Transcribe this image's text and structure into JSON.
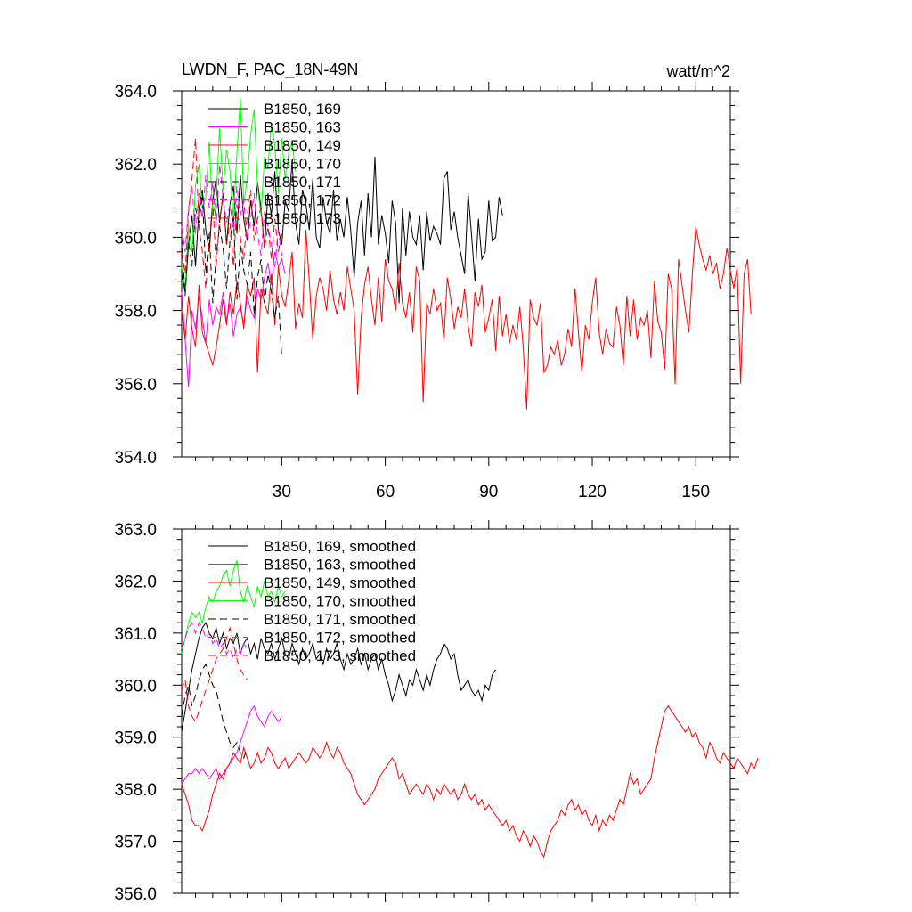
{
  "chart_data": [
    {
      "type": "line",
      "title_left": "LWDN_F, PAC_18N-49N",
      "title_right": "watt/m^2",
      "xlim": [
        1,
        160
      ],
      "ylim": [
        354,
        364
      ],
      "x_ticks": [
        30,
        60,
        90,
        120,
        150
      ],
      "x_tick_labels": [
        "30",
        "60",
        "90",
        "120",
        "150"
      ],
      "y_ticks": [
        354,
        356,
        358,
        360,
        362,
        364
      ],
      "y_tick_labels": [
        "354.0",
        "356.0",
        "358.0",
        "360.0",
        "362.0",
        "364.0"
      ],
      "legend_position": "top-left",
      "series": [
        {
          "name": "B1850, 169",
          "color": "#000000",
          "dash": "solid",
          "values": [
            359.0,
            358.5,
            359.8,
            360.6,
            359.2,
            360.8,
            361.3,
            360.2,
            359.6,
            361.0,
            361.6,
            360.4,
            361.2,
            359.8,
            360.9,
            361.4,
            360.1,
            361.7,
            360.5,
            359.9,
            361.0,
            360.3,
            361.5,
            360.8,
            359.7,
            361.2,
            360.6,
            361.8,
            360.2,
            359.8,
            361.0,
            360.7,
            362.1,
            360.4,
            359.8,
            361.3,
            360.9,
            360.2,
            361.6,
            360.0,
            359.7,
            361.1,
            360.4,
            360.1,
            361.3,
            359.9,
            360.5,
            360.0,
            361.1,
            360.2,
            358.9,
            360.4,
            361.0,
            359.5,
            361.2,
            360.0,
            362.2,
            359.8,
            360.6,
            360.1,
            359.3,
            361.0,
            360.4,
            358.2,
            360.8,
            359.5,
            360.7,
            360.0,
            359.8,
            360.6,
            359.1,
            360.7,
            359.9,
            360.3,
            360.1,
            359.8,
            361.6,
            361.8,
            360.2,
            360.7,
            360.0,
            359.5,
            359.0,
            361.2,
            360.1,
            358.8,
            360.5,
            359.4,
            359.6,
            361.0,
            359.9,
            360.0,
            361.1,
            360.6
          ]
        },
        {
          "name": "B1850, 163",
          "color": "#ff00ff",
          "dash": "solid",
          "values": [
            358.5,
            357.2,
            355.9,
            358.0,
            357.5,
            358.4,
            357.8,
            357.1,
            358.3,
            357.6,
            358.1,
            357.9,
            358.5,
            357.7,
            358.2,
            357.3,
            357.9,
            358.1,
            357.6,
            358.4,
            358.0,
            357.8,
            358.6,
            358.3,
            358.9,
            359.3,
            358.7,
            359.6,
            359.2,
            359.4,
            359.0
          ]
        },
        {
          "name": "B1850, 149",
          "color": "#ff0000",
          "dash": "solid",
          "values": [
            358.0,
            357.2,
            358.4,
            357.5,
            357.0,
            358.7,
            357.4,
            357.1,
            356.8,
            356.5,
            357.0,
            357.6,
            358.3,
            357.6,
            358.5,
            357.9,
            358.8,
            358.2,
            357.5,
            358.7,
            358.4,
            358.9,
            356.3,
            358.6,
            358.2,
            357.9,
            359.0,
            357.6,
            359.2,
            358.4,
            358.1,
            358.8,
            359.6,
            357.5,
            358.2,
            357.8,
            360.2,
            358.8,
            357.2,
            358.4,
            358.9,
            358.6,
            358.0,
            359.1,
            358.3,
            357.9,
            358.5,
            358.0,
            359.2,
            358.6,
            358.0,
            355.7,
            357.8,
            358.7,
            359.2,
            358.3,
            357.6,
            358.9,
            357.7,
            359.4,
            358.8,
            358.6,
            358.0,
            359.3,
            358.2,
            357.8,
            358.5,
            357.4,
            359.2,
            358.8,
            355.5,
            358.2,
            357.9,
            358.6,
            358.0,
            358.2,
            357.2,
            358.9,
            358.3,
            357.5,
            358.1,
            357.8,
            358.6,
            357.6,
            357.0,
            358.5,
            358.1,
            358.7,
            357.4,
            357.8,
            358.3,
            356.9,
            358.4,
            357.3,
            357.9,
            357.1,
            357.6,
            357.2,
            358.1,
            357.0,
            355.3,
            358.3,
            357.8,
            357.6,
            358.2,
            356.3,
            356.5,
            357.0,
            356.8,
            357.2,
            356.5,
            356.8,
            357.5,
            357.0,
            358.6,
            357.4,
            356.3,
            357.6,
            357.2,
            358.2,
            358.9,
            357.4,
            356.8,
            357.5,
            357.1,
            357.0,
            358.1,
            357.6,
            356.5,
            358.4,
            357.3,
            358.3,
            357.2,
            357.8,
            357.6,
            358.0,
            356.7,
            358.8,
            357.7,
            357.4,
            356.4,
            359.0,
            358.6,
            356.0,
            359.4,
            358.7,
            358.0,
            357.4,
            359.0,
            360.3,
            359.8,
            359.4,
            359.1,
            359.5,
            359.0,
            359.3,
            358.6,
            359.0,
            359.7,
            359.1,
            358.6,
            359.2,
            356.0,
            359.0,
            359.4,
            357.9
          ]
        },
        {
          "name": "B1850, 170",
          "color": "#00ff00",
          "dash": "solid",
          "values": [
            359.2,
            358.6,
            360.3,
            359.6,
            361.4,
            362.0,
            360.8,
            361.1,
            362.6,
            360.6,
            361.0,
            363.0,
            361.3,
            362.4,
            361.8,
            360.5,
            362.3,
            363.8,
            360.9,
            361.6,
            362.8,
            363.5,
            361.4,
            360.6,
            362.2,
            361.9,
            363.1,
            362.5,
            361.2,
            362.7,
            361.6,
            362.3,
            362.6,
            361.8
          ]
        },
        {
          "name": "B1850, 171",
          "color": "#000000",
          "dash": "dashed",
          "values": [
            360.0,
            358.4,
            359.9,
            359.2,
            360.8,
            360.4,
            361.2,
            359.0,
            360.1,
            358.2,
            359.5,
            360.3,
            359.7,
            358.6,
            359.9,
            360.6,
            358.3,
            359.8,
            359.1,
            358.7,
            359.6,
            357.9,
            358.9,
            359.4,
            358.2,
            359.0,
            358.5,
            357.8,
            358.4,
            356.7
          ]
        },
        {
          "name": "B1850, 172",
          "color": "#ff00ff",
          "dash": "dashed",
          "values": [
            360.3,
            359.6,
            360.8,
            361.4,
            360.1,
            361.2,
            360.5,
            361.7,
            360.8,
            361.5,
            360.3,
            362.0,
            361.1,
            360.4,
            360.9,
            360.2,
            361.4,
            360.6,
            361.0,
            359.9,
            360.5,
            361.2,
            360.1,
            359.5,
            360.7,
            360.3,
            359.8,
            359.2,
            360.2,
            359.5
          ]
        },
        {
          "name": "B1850, 173",
          "color": "#ff0000",
          "dash": "dashed",
          "values": [
            359.6,
            359.0,
            360.7,
            361.6,
            362.7,
            360.3,
            359.6,
            358.6,
            359.9,
            361.0,
            359.2,
            360.5,
            361.1,
            359.8,
            360.4,
            359.2,
            360.9,
            360.0,
            359.4,
            360.6,
            361.3,
            359.9,
            360.5,
            360.8,
            359.7,
            360.3,
            359.4,
            360.5,
            359.6,
            360.1
          ]
        }
      ]
    },
    {
      "type": "line",
      "xlim": [
        1,
        160
      ],
      "ylim": [
        356,
        363
      ],
      "x_ticks": [
        30,
        60,
        90,
        120,
        150
      ],
      "y_ticks": [
        356,
        357,
        358,
        359,
        360,
        361,
        362,
        363
      ],
      "y_tick_labels": [
        "356.0",
        "357.0",
        "358.0",
        "359.0",
        "360.0",
        "361.0",
        "362.0",
        "363.0"
      ],
      "legend_position": "top-left",
      "series": [
        {
          "name": "B1850, 169, smoothed",
          "color": "#000000",
          "dash": "solid",
          "values": [
            359.1,
            359.5,
            359.9,
            360.3,
            360.6,
            360.9,
            361.1,
            361.2,
            361.0,
            360.9,
            361.1,
            360.8,
            361.0,
            360.7,
            360.9,
            360.8,
            361.0,
            360.6,
            360.8,
            360.9,
            360.6,
            360.8,
            360.5,
            360.9,
            360.7,
            360.6,
            360.8,
            360.5,
            360.7,
            360.9,
            360.6,
            360.5,
            360.8,
            360.6,
            360.4,
            360.7,
            360.5,
            360.6,
            360.8,
            360.5,
            360.6,
            360.4,
            360.7,
            360.5,
            360.6,
            360.8,
            360.5,
            360.3,
            360.6,
            360.4,
            360.5,
            360.7,
            360.4,
            360.6,
            360.3,
            360.5,
            360.6,
            360.3,
            360.5,
            360.2,
            360.0,
            359.7,
            359.9,
            360.2,
            360.0,
            359.8,
            360.1,
            360.0,
            360.3,
            360.1,
            359.9,
            360.2,
            360.0,
            360.3,
            360.5,
            360.6,
            360.8,
            360.7,
            360.5,
            360.6,
            360.2,
            359.9,
            360.0,
            360.1,
            359.9,
            359.8,
            359.9,
            359.7,
            360.0,
            359.9,
            360.2,
            360.3
          ]
        },
        {
          "name": "B1850, 163, smoothed",
          "color": "#ff00ff",
          "dash": "solid",
          "values": [
            358.1,
            358.2,
            358.3,
            358.3,
            358.4,
            358.3,
            358.4,
            358.3,
            358.2,
            358.3,
            358.4,
            358.2,
            358.3,
            358.4,
            358.5,
            358.6,
            358.7,
            358.9,
            359.1,
            359.3,
            359.5,
            359.6,
            359.4,
            359.3,
            359.2,
            359.4,
            359.5,
            359.4,
            359.3,
            359.4
          ]
        },
        {
          "name": "B1850, 149, smoothed",
          "color": "#ff0000",
          "dash": "solid",
          "values": [
            358.1,
            357.9,
            357.7,
            357.4,
            357.3,
            357.3,
            357.2,
            357.4,
            357.6,
            357.9,
            358.1,
            358.3,
            358.2,
            358.4,
            358.5,
            358.7,
            358.6,
            358.5,
            358.8,
            358.6,
            358.4,
            358.5,
            358.7,
            358.5,
            358.6,
            358.8,
            358.7,
            358.5,
            358.4,
            358.5,
            358.6,
            358.4,
            358.5,
            358.6,
            358.7,
            358.6,
            358.5,
            358.6,
            358.8,
            358.7,
            358.6,
            358.7,
            358.9,
            358.7,
            358.6,
            358.8,
            358.7,
            358.5,
            358.4,
            358.3,
            358.1,
            357.9,
            357.8,
            357.7,
            357.8,
            357.9,
            358.0,
            358.2,
            358.3,
            358.4,
            358.5,
            358.6,
            358.5,
            358.2,
            358.3,
            358.1,
            357.9,
            358.0,
            358.1,
            358.0,
            357.9,
            358.1,
            358.0,
            357.8,
            358.0,
            357.9,
            358.1,
            358.0,
            357.9,
            358.0,
            357.8,
            357.9,
            358.1,
            357.9,
            357.8,
            357.9,
            357.7,
            357.8,
            357.6,
            357.7,
            357.6,
            357.5,
            357.4,
            357.3,
            357.4,
            357.2,
            357.3,
            357.1,
            357.0,
            357.2,
            357.1,
            356.9,
            357.1,
            357.0,
            356.8,
            356.7,
            357.0,
            357.2,
            357.3,
            357.4,
            357.6,
            357.5,
            357.7,
            357.8,
            357.6,
            357.7,
            357.5,
            357.6,
            357.4,
            357.3,
            357.5,
            357.2,
            357.4,
            357.3,
            357.5,
            357.4,
            357.6,
            357.8,
            357.7,
            358.0,
            358.3,
            358.1,
            358.2,
            357.9,
            358.0,
            358.1,
            358.2,
            358.6,
            358.9,
            359.2,
            359.5,
            359.6,
            359.5,
            359.4,
            359.3,
            359.2,
            359.1,
            359.2,
            359.0,
            359.1,
            358.9,
            358.8,
            358.6,
            358.9,
            358.8,
            358.6,
            358.5,
            358.7,
            358.6,
            358.5,
            358.4,
            358.6,
            358.5,
            358.4,
            358.3,
            358.5,
            358.4,
            358.6
          ]
        },
        {
          "name": "B1850, 170, smoothed",
          "color": "#00ff00",
          "dash": "solid",
          "values": [
            360.6,
            360.9,
            361.2,
            361.4,
            361.3,
            361.4,
            361.2,
            361.5,
            361.7,
            361.6,
            361.8,
            361.9,
            362.1,
            362.2,
            361.9,
            362.2,
            362.4,
            361.8,
            361.6,
            361.9,
            361.7,
            361.5,
            361.9,
            361.7,
            362.0,
            361.7,
            361.8,
            361.6,
            361.9,
            361.7,
            361.8
          ]
        },
        {
          "name": "B1850, 171, smoothed",
          "color": "#000000",
          "dash": "dashed",
          "values": [
            359.4,
            359.8,
            360.0,
            359.6,
            359.8,
            360.1,
            360.3,
            360.4,
            360.2,
            360.0,
            359.9,
            359.6,
            359.3,
            359.1,
            358.9,
            358.8,
            358.9,
            358.7,
            358.6,
            358.8
          ]
        },
        {
          "name": "B1850, 172, smoothed",
          "color": "#ff00ff",
          "dash": "dashed",
          "values": [
            360.7,
            360.9,
            361.1,
            361.2,
            361.0,
            361.2,
            361.1,
            360.9,
            361.0,
            360.8,
            360.9,
            360.7,
            360.8,
            360.6,
            360.7,
            360.5,
            360.7,
            360.6,
            360.8,
            360.7
          ]
        },
        {
          "name": "B1850, 173, smoothed",
          "color": "#ff0000",
          "dash": "dashed",
          "values": [
            359.9,
            360.1,
            359.6,
            359.4,
            359.3,
            359.5,
            359.7,
            359.9,
            360.1,
            360.3,
            360.5,
            360.6,
            360.7,
            360.9,
            361.1,
            360.8,
            360.5,
            360.3,
            360.2,
            360.1
          ]
        }
      ]
    }
  ]
}
